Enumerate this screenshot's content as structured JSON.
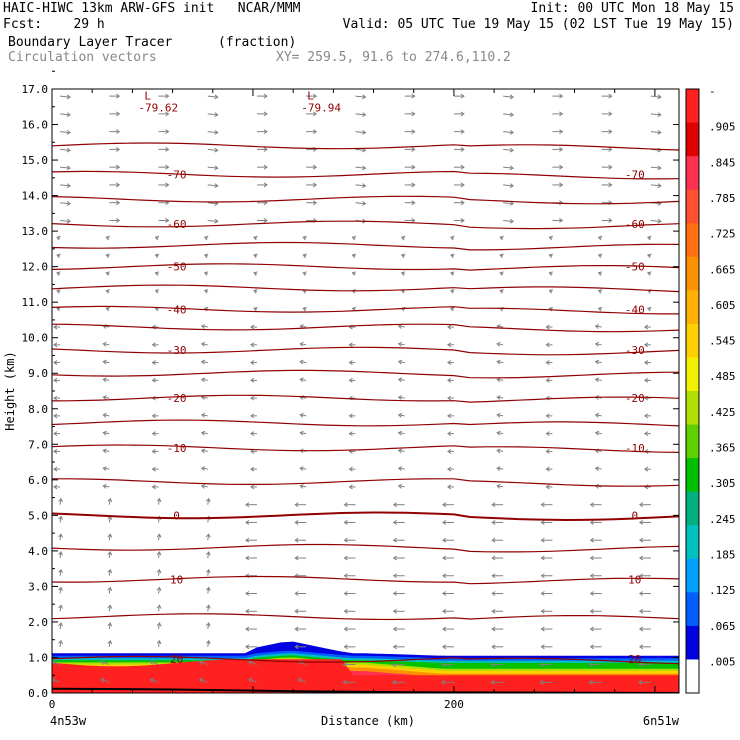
{
  "header": {
    "line1_left": "HAIC-HIWC 13km ARW-GFS init   NCAR/MMM",
    "line1_right": "Init: 00 UTC Mon 18 May 15",
    "line2_left": "Fcst:    29 h",
    "line2_right": "Valid: 05 UTC Tue 19 May 15 (02 LST Tue 19 May 15)",
    "line3_left": "Boundary Layer Tracer",
    "line3_units": "(fraction)",
    "line4_left": "Circulation vectors",
    "line4_right": "XY= 259.5, 91.6 to 274.6,110.2"
  },
  "chart_data": {
    "type": "heatmap",
    "ylabel": "Height (km)",
    "xlabel": "Distance (km)",
    "x_ticks": [
      "0",
      "200"
    ],
    "x_endpoints": [
      "4n53w",
      "6n51w"
    ],
    "xlim": [
      0,
      312
    ],
    "ylim": [
      0,
      17
    ],
    "y_ticks": [
      "0.0",
      "1.0",
      "2.0",
      "3.0",
      "4.0",
      "5.0",
      "6.0",
      "7.0",
      "8.0",
      "9.0",
      "10.0",
      "11.0",
      "12.0",
      "13.0",
      "14.0",
      "15.0",
      "16.0",
      "17.0"
    ],
    "colorbar": {
      "labels": [
        "-",
        ".905",
        ".845",
        ".785",
        ".725",
        ".665",
        ".605",
        ".545",
        ".485",
        ".425",
        ".365",
        ".305",
        ".245",
        ".185",
        ".125",
        ".065",
        ".005"
      ],
      "colors": [
        "#ff2020",
        "#e00000",
        "#ff3050",
        "#ff5030",
        "#ff7010",
        "#ff9000",
        "#ffb000",
        "#ffd000",
        "#f0f000",
        "#b0e000",
        "#60d000",
        "#00c000",
        "#00b080",
        "#00c0c0",
        "#00a0ff",
        "#0060ff",
        "#0000e0",
        "#ffffff"
      ]
    },
    "temperature_contours": [
      {
        "height": 15.4,
        "label": ""
      },
      {
        "height": 14.6,
        "label": "-70"
      },
      {
        "height": 13.9,
        "label": ""
      },
      {
        "height": 13.2,
        "label": "-60"
      },
      {
        "height": 12.6,
        "label": ""
      },
      {
        "height": 12.0,
        "label": "-50"
      },
      {
        "height": 11.4,
        "label": ""
      },
      {
        "height": 10.8,
        "label": "-40"
      },
      {
        "height": 10.3,
        "label": ""
      },
      {
        "height": 9.65,
        "label": "-30"
      },
      {
        "height": 9.0,
        "label": ""
      },
      {
        "height": 8.3,
        "label": "-20"
      },
      {
        "height": 7.6,
        "label": ""
      },
      {
        "height": 6.9,
        "label": "-10"
      },
      {
        "height": 5.95,
        "label": ""
      },
      {
        "height": 5.0,
        "label": "0"
      },
      {
        "height": 4.1,
        "label": ""
      },
      {
        "height": 3.2,
        "label": "10"
      },
      {
        "height": 2.15,
        "label": ""
      },
      {
        "height": 0.95,
        "label": "20"
      }
    ],
    "lows": [
      {
        "x": 45,
        "height": 16.7,
        "label": "L",
        "value": "-79.62"
      },
      {
        "x": 126,
        "height": 16.7,
        "label": "L",
        "value": "-79.94"
      }
    ]
  }
}
